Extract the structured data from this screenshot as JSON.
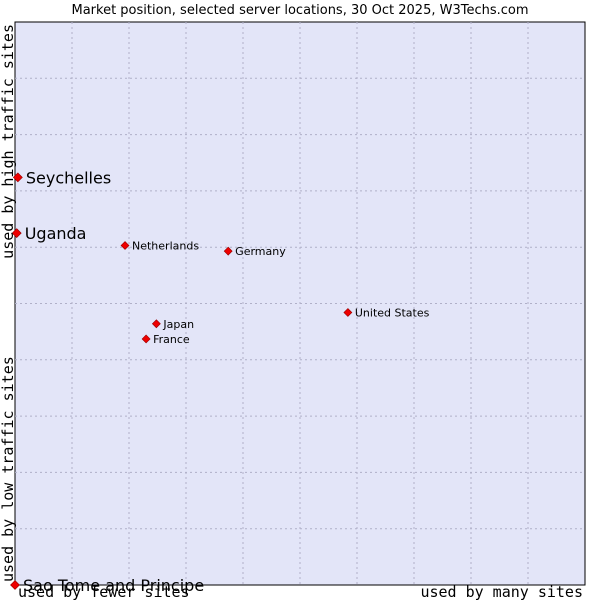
{
  "chart_data": {
    "type": "scatter",
    "title": "Market position, selected server locations, 30 Oct 2025, W3Techs.com",
    "xlabel_left": "used by fewer sites",
    "xlabel_right": "used by many sites",
    "ylabel_bottom": "used by low traffic sites",
    "ylabel_top": "used by high traffic sites",
    "xlim": [
      0,
      100
    ],
    "ylim": [
      0,
      100
    ],
    "grid": true,
    "point_color": "#ee0000",
    "background_color": "#e3e5f8",
    "grid_color": "#b0b0c8",
    "points": [
      {
        "label": "Seychelles",
        "x": 0.5,
        "y": 72.4,
        "emphasis": "large"
      },
      {
        "label": "Uganda",
        "x": 0.3,
        "y": 62.5,
        "emphasis": "large"
      },
      {
        "label": "Sao Tome and Principe",
        "x": 0.0,
        "y": 0.0,
        "emphasis": "large"
      },
      {
        "label": "Netherlands",
        "x": 19.3,
        "y": 60.3,
        "emphasis": "normal"
      },
      {
        "label": "Germany",
        "x": 37.4,
        "y": 59.3,
        "emphasis": "normal"
      },
      {
        "label": "United States",
        "x": 58.4,
        "y": 48.4,
        "emphasis": "normal"
      },
      {
        "label": "Japan",
        "x": 24.8,
        "y": 46.4,
        "emphasis": "normal"
      },
      {
        "label": "France",
        "x": 23.0,
        "y": 43.7,
        "emphasis": "normal"
      }
    ]
  }
}
